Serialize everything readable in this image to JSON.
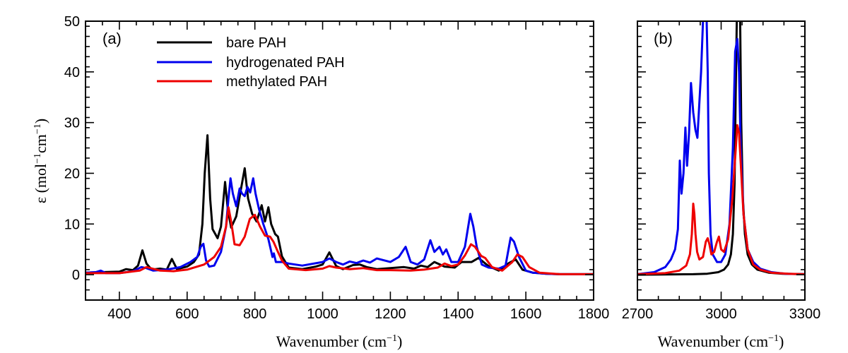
{
  "chart_data": [
    {
      "type": "line",
      "panel_label": "(a)",
      "xlabel": "Wavenumber (cm",
      "xlabel_sup": "−1",
      "xlabel_end": ")",
      "ylabel_main": "ε (mol",
      "ylabel_sup1": "−1",
      "ylabel_mid": "cm",
      "ylabel_sup2": "−1",
      "ylabel_end": ")",
      "xlim": [
        300,
        1800
      ],
      "ylim": [
        -5,
        50
      ],
      "xticks": [
        400,
        600,
        800,
        1000,
        1200,
        1400,
        1600,
        1800
      ],
      "yticks": [
        0,
        10,
        20,
        30,
        40,
        50
      ],
      "legend_position": "top-left",
      "series": [
        {
          "name": "bare PAH",
          "color": "#000000",
          "x": [
            300,
            400,
            420,
            440,
            455,
            468,
            480,
            495,
            520,
            540,
            555,
            570,
            600,
            620,
            635,
            645,
            652,
            660,
            668,
            675,
            690,
            700,
            712,
            720,
            730,
            745,
            758,
            770,
            780,
            792,
            805,
            820,
            830,
            840,
            848,
            860,
            868,
            880,
            900,
            940,
            980,
            1000,
            1020,
            1040,
            1060,
            1090,
            1110,
            1130,
            1160,
            1200,
            1240,
            1270,
            1290,
            1310,
            1330,
            1360,
            1390,
            1410,
            1440,
            1460,
            1490,
            1520,
            1550,
            1570,
            1590,
            1620,
            1660,
            1700,
            1800
          ],
          "y": [
            0.4,
            0.6,
            1.1,
            0.9,
            1.8,
            4.8,
            2.2,
            1.0,
            1.2,
            1.0,
            3.1,
            1.1,
            1.6,
            2.5,
            4.0,
            10,
            20,
            27.5,
            15,
            9,
            7.2,
            9.5,
            18.3,
            13,
            9.3,
            11.5,
            16.5,
            21,
            15,
            12,
            10.5,
            13.7,
            10.5,
            13.3,
            10,
            8,
            7.5,
            3.6,
            1.4,
            1.1,
            1.6,
            2.0,
            4.4,
            1.7,
            1.1,
            1.9,
            2.0,
            1.5,
            1.1,
            1.3,
            1.5,
            1.2,
            1.8,
            1.5,
            2.5,
            1.6,
            1.4,
            2.5,
            2.5,
            3.3,
            1.7,
            0.8,
            2.3,
            3.0,
            1.0,
            0.4,
            0.2,
            0.1,
            0.1
          ]
        },
        {
          "name": "hydrogenated PAH",
          "color": "#0000ee",
          "x": [
            300,
            330,
            345,
            360,
            400,
            440,
            465,
            480,
            500,
            540,
            580,
            610,
            630,
            640,
            648,
            656,
            665,
            680,
            700,
            715,
            722,
            728,
            735,
            745,
            755,
            762,
            770,
            778,
            786,
            795,
            802,
            812,
            825,
            840,
            852,
            856,
            862,
            880,
            900,
            940,
            1000,
            1020,
            1040,
            1060,
            1080,
            1100,
            1120,
            1140,
            1160,
            1200,
            1225,
            1245,
            1260,
            1280,
            1300,
            1318,
            1330,
            1345,
            1355,
            1365,
            1380,
            1400,
            1420,
            1436,
            1445,
            1455,
            1470,
            1490,
            1520,
            1540,
            1555,
            1565,
            1580,
            1600,
            1620,
            1660,
            1700,
            1800
          ],
          "y": [
            0.4,
            0.5,
            0.8,
            0.3,
            0.3,
            0.7,
            1.5,
            1.3,
            0.8,
            1.0,
            1.5,
            2.5,
            3.5,
            5.5,
            6.1,
            2.8,
            1.6,
            1.8,
            4.5,
            9.5,
            15,
            19,
            16,
            13.5,
            17,
            16,
            15.5,
            17.3,
            16.2,
            19,
            16,
            13,
            10,
            7,
            3.5,
            4.2,
            2.5,
            2.5,
            2.2,
            1.8,
            2.5,
            3.2,
            2.5,
            2.0,
            2.6,
            2.3,
            2.8,
            2.4,
            3.2,
            2.5,
            3.5,
            5.5,
            2.5,
            2.0,
            3.0,
            6.8,
            4.5,
            5.5,
            4.0,
            5.0,
            2.5,
            2.5,
            5.5,
            12,
            9.5,
            5.5,
            2.0,
            1.4,
            1.2,
            1.8,
            7.3,
            6.5,
            3.5,
            0.8,
            0.4,
            0.2,
            0.1,
            0.1
          ]
        },
        {
          "name": "methylated PAH",
          "color": "#ee0000",
          "x": [
            300,
            400,
            460,
            480,
            520,
            560,
            600,
            650,
            680,
            700,
            715,
            722,
            730,
            740,
            755,
            770,
            785,
            800,
            815,
            830,
            845,
            855,
            868,
            880,
            900,
            950,
            1000,
            1020,
            1040,
            1080,
            1120,
            1160,
            1200,
            1260,
            1300,
            1340,
            1360,
            1380,
            1400,
            1420,
            1438,
            1450,
            1468,
            1480,
            1500,
            1530,
            1560,
            1575,
            1590,
            1610,
            1640,
            1700,
            1800
          ],
          "y": [
            0.3,
            0.3,
            0.8,
            1.5,
            0.8,
            0.7,
            1.0,
            2.0,
            3.5,
            5.5,
            9.5,
            13.3,
            10.5,
            6.0,
            5.8,
            7.5,
            11,
            11.8,
            9.5,
            7.7,
            7.5,
            6.5,
            4.5,
            2.8,
            1.2,
            0.9,
            1.2,
            1.7,
            1.4,
            1.1,
            1.3,
            0.9,
            0.9,
            0.8,
            1.0,
            1.4,
            2.2,
            1.7,
            2.0,
            3.8,
            6.0,
            5.5,
            3.7,
            3.3,
            1.5,
            0.8,
            2.5,
            4.0,
            3.5,
            1.5,
            0.4,
            0.1,
            0.1
          ]
        }
      ],
      "legend": [
        "bare PAH",
        "hydrogenated PAH",
        "methylated PAH"
      ]
    },
    {
      "type": "line",
      "panel_label": "(b)",
      "xlabel": "Wavenumber (cm",
      "xlabel_sup": "−1",
      "xlabel_end": ")",
      "xlim": [
        2700,
        3300
      ],
      "ylim": [
        -5,
        50
      ],
      "xticks": [
        2700,
        3000,
        3300
      ],
      "series": [
        {
          "name": "bare PAH",
          "color": "#000000",
          "x": [
            2700,
            2800,
            2900,
            2950,
            2990,
            3010,
            3025,
            3035,
            3042,
            3048,
            3052,
            3056,
            3060,
            3064,
            3068,
            3072,
            3078,
            3085,
            3095,
            3110,
            3130,
            3170,
            3220,
            3300
          ],
          "y": [
            0,
            0.05,
            0.1,
            0.2,
            0.5,
            1.0,
            2.0,
            4.0,
            8.0,
            18,
            35,
            50,
            55,
            55,
            50,
            30,
            15,
            8,
            4,
            2,
            1,
            0.4,
            0.2,
            0.1
          ]
        },
        {
          "name": "hydrogenated PAH",
          "color": "#0000ee",
          "x": [
            2700,
            2760,
            2800,
            2820,
            2835,
            2845,
            2852,
            2858,
            2865,
            2872,
            2878,
            2885,
            2892,
            2900,
            2908,
            2915,
            2922,
            2928,
            2935,
            2942,
            2948,
            2952,
            2956,
            2962,
            2970,
            2985,
            3000,
            3015,
            3030,
            3042,
            3050,
            3058,
            3064,
            3070,
            3080,
            3095,
            3115,
            3140,
            3180,
            3230,
            3300
          ],
          "y": [
            0.1,
            0.5,
            1.5,
            3.0,
            5.0,
            9.0,
            22.5,
            16,
            20,
            29,
            21.5,
            28,
            37.8,
            32,
            28.5,
            27,
            34,
            40,
            50,
            52,
            50,
            40,
            20,
            8,
            4,
            2.5,
            2.5,
            4,
            10,
            25,
            44,
            46.5,
            40,
            25,
            12,
            5,
            2.5,
            1.2,
            0.5,
            0.2,
            0.1
          ]
        },
        {
          "name": "methylated PAH",
          "color": "#ee0000",
          "x": [
            2700,
            2800,
            2850,
            2875,
            2888,
            2895,
            2900,
            2904,
            2908,
            2914,
            2922,
            2935,
            2945,
            2952,
            2958,
            2965,
            2975,
            2985,
            2992,
            3000,
            3010,
            3025,
            3040,
            3050,
            3058,
            3064,
            3070,
            3080,
            3095,
            3115,
            3140,
            3180,
            3240,
            3300
          ],
          "y": [
            0.1,
            0.3,
            0.8,
            1.8,
            4.0,
            8.0,
            14,
            12,
            8,
            4.5,
            3.0,
            3.5,
            6.5,
            7.2,
            6.0,
            4.0,
            4.5,
            6.5,
            7.5,
            5.0,
            4.5,
            7.0,
            15,
            23,
            29.5,
            28,
            22,
            12,
            5,
            2.0,
            1.0,
            0.4,
            0.2,
            0.1
          ]
        }
      ]
    }
  ],
  "legend_colors": {
    "bare PAH": "#000000",
    "hydrogenated PAH": "#0000ee",
    "methylated PAH": "#ee0000"
  }
}
